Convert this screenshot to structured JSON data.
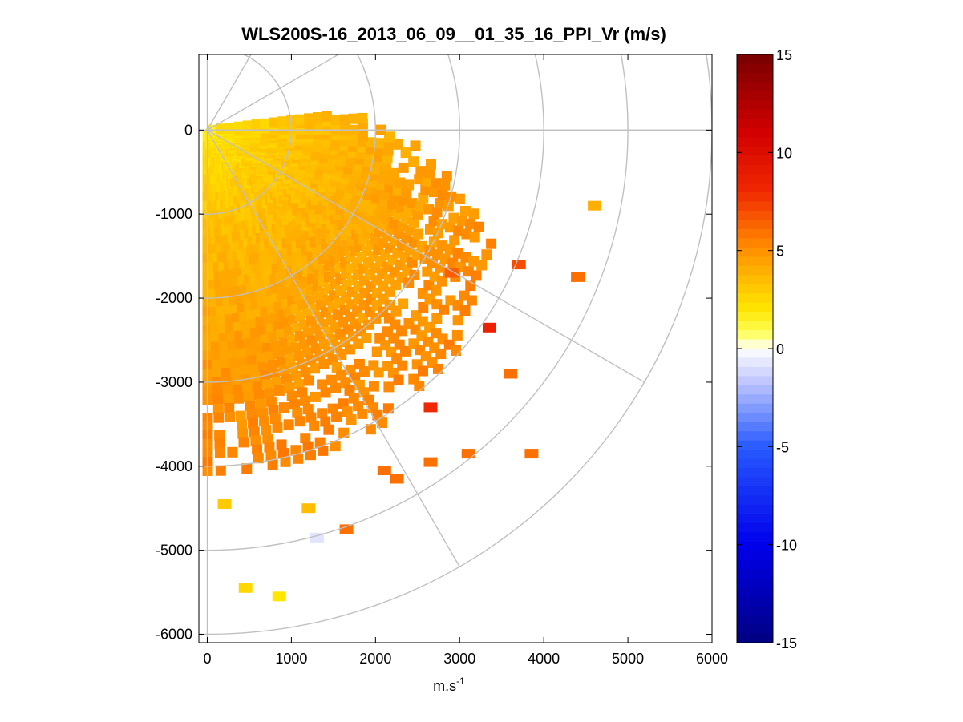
{
  "chart_data": {
    "type": "heatmap",
    "subtype": "polar PPI scan",
    "title": "WLS200S-16_2013_06_09__01_35_16_PPI_Vr (m/s)",
    "xlabel_base": "m.s",
    "xlabel_sup": "-1",
    "ylabel": "",
    "xlim": [
      -100,
      6000
    ],
    "ylim": [
      -6100,
      900
    ],
    "xticks": [
      0,
      1000,
      2000,
      3000,
      4000,
      5000,
      6000
    ],
    "yticks": [
      0,
      -1000,
      -2000,
      -3000,
      -4000,
      -5000,
      -6000
    ],
    "xticklabels": [
      "0",
      "1000",
      "2000",
      "3000",
      "4000",
      "5000",
      "6000"
    ],
    "yticklabels": [
      "0",
      "-1000",
      "-2000",
      "-3000",
      "-4000",
      "-5000",
      "-6000"
    ],
    "polar_grid": {
      "ring_radii": [
        1000,
        2000,
        3000,
        4000,
        5000,
        6000
      ],
      "spoke_angles_deg": [
        0,
        -30,
        -60,
        30,
        60
      ]
    },
    "colorbar": {
      "range": [
        -15,
        15
      ],
      "ticks": [
        15,
        10,
        5,
        0,
        -5,
        -10,
        -15
      ],
      "ticklabels": [
        "15",
        "10",
        "5",
        "0",
        "-5",
        "-10",
        "-15"
      ],
      "colormap": "blue-white-yellow-red"
    },
    "sector": {
      "azimuth_range_deg": [
        -90,
        8
      ],
      "max_range_m": 4100,
      "velocity_near_ms": 1.5,
      "velocity_far_ms": 5.5
    },
    "isolated_cells": [
      {
        "x": 2900,
        "y": -1700,
        "v": 6.5
      },
      {
        "x": 3350,
        "y": -2350,
        "v": 8.5
      },
      {
        "x": 3700,
        "y": -1600,
        "v": 7.0
      },
      {
        "x": 4400,
        "y": -1750,
        "v": 6.0
      },
      {
        "x": 4600,
        "y": -900,
        "v": 4.0
      },
      {
        "x": 3600,
        "y": -2900,
        "v": 6.0
      },
      {
        "x": 3850,
        "y": -3850,
        "v": 6.0
      },
      {
        "x": 3100,
        "y": -3850,
        "v": 6.0
      },
      {
        "x": 2650,
        "y": -3950,
        "v": 6.0
      },
      {
        "x": 2250,
        "y": -4150,
        "v": 6.0
      },
      {
        "x": 2650,
        "y": -3300,
        "v": 8.0
      },
      {
        "x": 2100,
        "y": -4050,
        "v": 6.0
      },
      {
        "x": 1200,
        "y": -4500,
        "v": 3.5
      },
      {
        "x": 1650,
        "y": -4750,
        "v": 6.0
      },
      {
        "x": 1300,
        "y": -4850,
        "v": -0.8
      },
      {
        "x": 450,
        "y": -5450,
        "v": 2.5
      },
      {
        "x": 850,
        "y": -5550,
        "v": 2.0
      },
      {
        "x": 200,
        "y": -4450,
        "v": 3.0
      }
    ]
  }
}
